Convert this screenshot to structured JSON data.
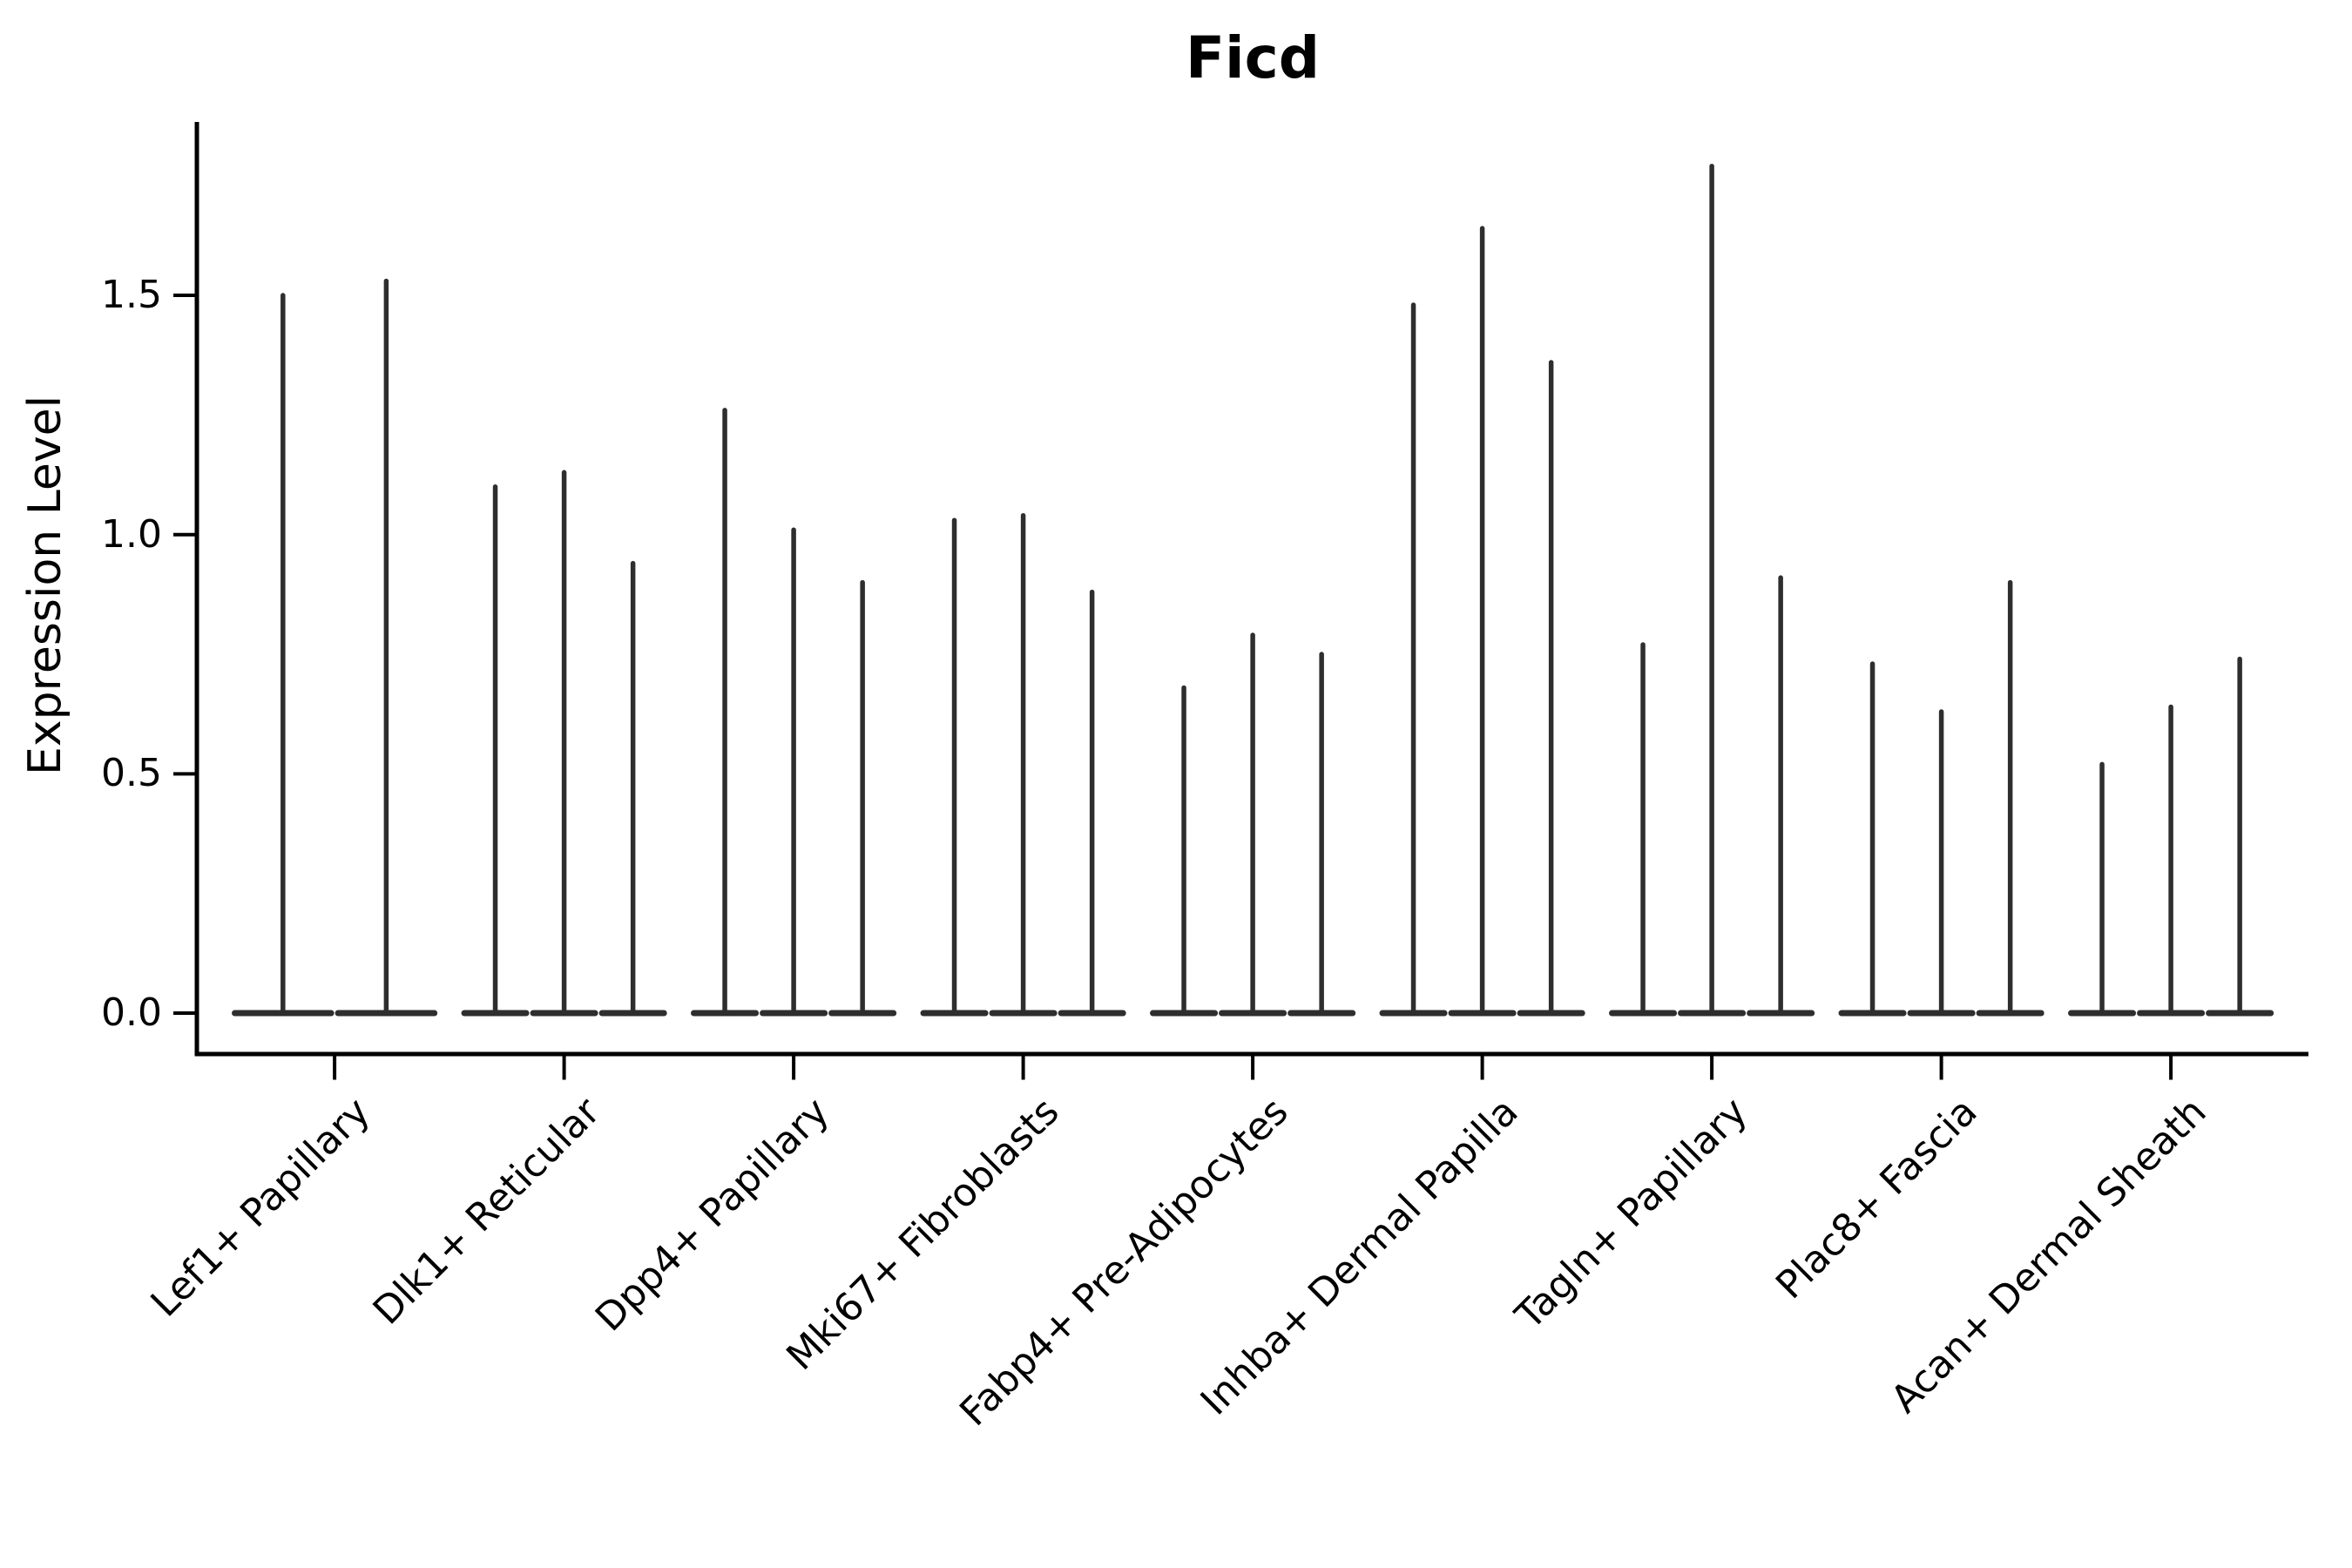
{
  "title": "Ficd",
  "y_axis": {
    "label": "Expression Level",
    "ticks": [
      "0.0",
      "0.5",
      "1.0",
      "1.5"
    ]
  },
  "chart_data": {
    "type": "violin",
    "title": "Ficd",
    "xlabel": "",
    "ylabel": "Expression Level",
    "yticks": [
      0.0,
      0.5,
      1.0,
      1.5
    ],
    "ylim": [
      -0.09,
      1.86
    ],
    "grid": false,
    "legend": "none",
    "categories": [
      "Lef1+ Papillary",
      "Dlk1+ Reticular",
      "Dpp4+ Papillary",
      "Mki67+ Fibroblasts",
      "Fabp4+ Pre-Adipocytes",
      "Inhba+ Dermal Papilla",
      "Tagln+ Papillary",
      "Plac8+ Fascia",
      "Acan+ Dermal Sheath"
    ],
    "description": "Stacked violin plot of Ficd expression; each group holds thin dodged violins (one per sample) shown as a flat base at 0 with a narrow density spike up to the maximum expression value.",
    "groups": [
      {
        "category": "Lef1+ Papillary",
        "violins": [
          {
            "offset": -0.225,
            "width": 0.45,
            "max": 1.5
          },
          {
            "offset": 0.225,
            "width": 0.45,
            "max": 1.53
          }
        ]
      },
      {
        "category": "Dlk1+ Reticular",
        "violins": [
          {
            "offset": -0.3,
            "width": 0.3,
            "max": 1.1
          },
          {
            "offset": 0,
            "width": 0.3,
            "max": 1.13
          },
          {
            "offset": 0.3,
            "width": 0.3,
            "max": 0.94
          }
        ]
      },
      {
        "category": "Dpp4+ Papillary",
        "violins": [
          {
            "offset": -0.3,
            "width": 0.3,
            "max": 1.26
          },
          {
            "offset": 0,
            "width": 0.3,
            "max": 1.01
          },
          {
            "offset": 0.3,
            "width": 0.3,
            "max": 0.9
          }
        ]
      },
      {
        "category": "Mki67+ Fibroblasts",
        "violins": [
          {
            "offset": -0.3,
            "width": 0.3,
            "max": 1.03
          },
          {
            "offset": 0,
            "width": 0.3,
            "max": 1.04
          },
          {
            "offset": 0.3,
            "width": 0.3,
            "max": 0.88
          }
        ]
      },
      {
        "category": "Fabp4+ Pre-Adipocytes",
        "violins": [
          {
            "offset": -0.3,
            "width": 0.3,
            "max": 0.68
          },
          {
            "offset": 0,
            "width": 0.3,
            "max": 0.79
          },
          {
            "offset": 0.3,
            "width": 0.3,
            "max": 0.75
          }
        ]
      },
      {
        "category": "Inhba+ Dermal Papilla",
        "violins": [
          {
            "offset": -0.3,
            "width": 0.3,
            "max": 1.48
          },
          {
            "offset": 0,
            "width": 0.3,
            "max": 1.64
          },
          {
            "offset": 0.3,
            "width": 0.3,
            "max": 1.36
          }
        ]
      },
      {
        "category": "Tagln+ Papillary",
        "violins": [
          {
            "offset": -0.3,
            "width": 0.3,
            "max": 0.77
          },
          {
            "offset": 0,
            "width": 0.3,
            "max": 1.77
          },
          {
            "offset": 0.3,
            "width": 0.3,
            "max": 0.91
          }
        ]
      },
      {
        "category": "Plac8+ Fascia",
        "violins": [
          {
            "offset": -0.3,
            "width": 0.3,
            "max": 0.73
          },
          {
            "offset": 0,
            "width": 0.3,
            "max": 0.63
          },
          {
            "offset": 0.3,
            "width": 0.3,
            "max": 0.9
          }
        ]
      },
      {
        "category": "Acan+ Dermal Sheath",
        "violins": [
          {
            "offset": -0.3,
            "width": 0.3,
            "max": 0.52
          },
          {
            "offset": 0,
            "width": 0.3,
            "max": 0.64
          },
          {
            "offset": 0.3,
            "width": 0.3,
            "max": 0.74
          }
        ]
      }
    ],
    "style": {
      "violin_color": "#2e2e2e",
      "spine_color": "#000000",
      "text_color": "#000000",
      "background": "#ffffff"
    }
  }
}
